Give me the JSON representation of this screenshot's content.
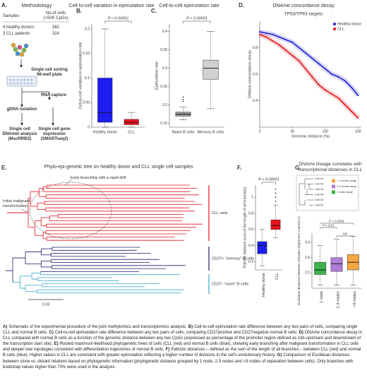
{
  "methodology": {
    "letter": "A.",
    "title": "Methodology",
    "table": {
      "header": [
        "Samples",
        "No.of cells (>50K CpGs)"
      ],
      "rows": [
        [
          "4 healthy donors",
          382
        ],
        [
          "3 CLL patients",
          324
        ]
      ]
    },
    "steps": {
      "sorting": "Single cell sorting 96-well plate",
      "rna": "RNA capture",
      "gdna": "gDNA isolation",
      "dnamet": "Single cell DNAmet analysis (MscRRBS)",
      "expr": "Single cell gene expression (SMARTseq2)"
    }
  },
  "chart_data": [
    {
      "type": "box",
      "letter": "B.",
      "title": "Cell-to-cell variation in epimutation rate",
      "pvalue": "P < 0.00001",
      "ylabel": "Cell-to-cell variation in epimutation rate",
      "categories": [
        "Healthy donor",
        "CLL"
      ],
      "colors": [
        "#1c1cf0",
        "#e8141c"
      ],
      "boxes": [
        {
          "min": 0.0,
          "q1": 0.01,
          "median": 0.03,
          "q3": 0.1,
          "max": 0.2,
          "outliers": []
        },
        {
          "min": 0.0,
          "q1": 0.005,
          "median": 0.01,
          "q3": 0.016,
          "max": 0.03,
          "outliers": []
        }
      ],
      "ylim": [
        0,
        0.21
      ],
      "yticks": [
        0,
        0.05,
        0.1,
        0.15,
        0.2
      ]
    },
    {
      "type": "box",
      "letter": "C.",
      "title": "Cell-to-cell epimutation rate",
      "pvalue": "P < 0.00001",
      "ylabel": "Epimutation rate",
      "categories": [
        "Naive B cells",
        "Memory B cells"
      ],
      "colors": [
        "#9a9a9a",
        "#d0d0d0"
      ],
      "boxes": [
        {
          "min": 0.16,
          "q1": 0.17,
          "median": 0.175,
          "q3": 0.181,
          "max": 0.195,
          "outliers": [
            0.21,
            0.215,
            0.222
          ]
        },
        {
          "min": 0.19,
          "q1": 0.27,
          "median": 0.3,
          "q3": 0.322,
          "max": 0.4,
          "outliers": []
        }
      ],
      "ylim": [
        0.14,
        0.42
      ],
      "yticks": [
        0.15,
        0.2,
        0.25,
        0.3,
        0.35,
        0.4
      ]
    },
    {
      "type": "line",
      "letter": "D.",
      "title": "DNAme concordance decay",
      "subtitle": "TP53/TP63 targets",
      "xlabel": "Genomic distance (%)",
      "ylabel": "DNAme concordance decay",
      "x": [
        0,
        10,
        20,
        30,
        40,
        50,
        60,
        70,
        80,
        90,
        100,
        110,
        120,
        130,
        140,
        150
      ],
      "series": [
        {
          "name": "Healthy donor",
          "color": "#1f1fd6",
          "values": [
            0.92,
            0.91,
            0.9,
            0.88,
            0.86,
            0.84,
            0.8,
            0.76,
            0.72,
            0.68,
            0.64,
            0.6,
            0.58,
            0.55,
            0.5,
            0.44
          ]
        },
        {
          "name": "CLL",
          "color": "#e3141c",
          "values": [
            0.9,
            0.88,
            0.85,
            0.82,
            0.78,
            0.74,
            0.7,
            0.64,
            0.58,
            0.52,
            0.48,
            0.45,
            0.42,
            0.37,
            0.32,
            0.27
          ]
        }
      ],
      "xlim": [
        0,
        155
      ],
      "xticks": [
        0,
        50,
        100,
        150
      ],
      "ylim": [
        0.2,
        1.0
      ],
      "yticks": [
        0.4,
        0.6,
        0.8
      ],
      "legend": "top-right"
    },
    {
      "type": "box",
      "letter": "F.",
      "pvalue": "P < 0.00001",
      "ylabel": "Patristic distance (sum of the length of all branches)",
      "categories": [
        "Healthy donor",
        "CLL"
      ],
      "colors": [
        "#1c1cf0",
        "#e8141c"
      ],
      "boxes": [
        {
          "min": 0.15,
          "q1": 0.3,
          "median": 0.4,
          "q3": 0.45,
          "max": 0.6,
          "outliers": []
        },
        {
          "min": 0.5,
          "q1": 0.6,
          "median": 0.65,
          "q3": 0.72,
          "max": 0.9,
          "outliers": [
            0.95,
            1.0,
            1.05,
            1.1
          ]
        }
      ],
      "ylim": [
        0.1,
        1.15
      ],
      "yticks": [
        0.2,
        0.4,
        0.6,
        0.8,
        1
      ]
    },
    {
      "type": "box",
      "letter": "G.",
      "title": "DNAme lineage correlates with transcriptional distances in CLL",
      "pvalues": [
        "P < 0.0001",
        "P < 0.01",
        "NS"
      ],
      "ylabel": "Euclidean distances between cell pairs (log2(norm counts)+1)",
      "categories": [
        "1 node",
        "2-3 nodes",
        ">3 nodes"
      ],
      "colors": [
        "#3cb44b",
        "#b07cd8",
        "#f4a742"
      ],
      "boxes": [
        {
          "min": 1.6,
          "q1": 1.95,
          "median": 2.1,
          "q3": 2.35,
          "max": 2.9,
          "outliers": []
        },
        {
          "min": 1.6,
          "q1": 2.05,
          "median": 2.3,
          "q3": 2.5,
          "max": 3.1,
          "outliers": []
        },
        {
          "min": 1.6,
          "q1": 2.1,
          "median": 2.35,
          "q3": 2.6,
          "max": 3.2,
          "outliers": []
        }
      ],
      "ylim": [
        1.5,
        3.3
      ],
      "yticks": [
        {
          "value": 2,
          "label": "2.0"
        },
        2.5,
        {
          "value": 3,
          "label": "3.0"
        }
      ],
      "cells": [
        "Cell #1",
        "Cell #2",
        "Cell #3",
        "Cell #4",
        "Cell #5",
        "Cell #n"
      ],
      "legend_items": [
        {
          "name": "> 3 nodes away",
          "color": "#f4a742"
        },
        {
          "name": "2-3 nodes away",
          "color": "#b07cd8"
        },
        {
          "name": "1 node away",
          "color": "#3cb44b"
        }
      ]
    }
  ],
  "tree": {
    "letter": "E.",
    "title": "Phylo-epi-genetic tree on healthy donor and CLL single cell samples",
    "annotations": [
      "Early branching with a rapid drift",
      "Initial malignant transformation"
    ],
    "groups": [
      {
        "name": "CLL cells",
        "color": "#e3141c"
      },
      {
        "name": "CD27+ “memory” B cells",
        "color": "#1b1b6b"
      },
      {
        "name": "CD27- “naive” B cells",
        "color": "#3aa6cc"
      }
    ],
    "scale": 0.03
  },
  "caption": [
    {
      "label": "A)",
      "text": "Schematic of the experimental procedure of the joint methylomics and transcriptomics analysis."
    },
    {
      "label": "B)",
      "text": "Cell-to-cell epimutation rate difference between any two pairs of cells, comparing single CLL and normal B cells."
    },
    {
      "label": "C)",
      "text": "Cell-to-cell epimutation rate difference between any two pairs of cells, comparing CD27positive and CD27negative normal B cells."
    },
    {
      "label": "D)",
      "text": "DNAme concordance decay in CLL compared with normal B cells as a function of the genomic distance between any two CpGs (expressed as percentage of the promoter region defined as 1kb upstream and downstream of the transcription start site)."
    },
    {
      "label": "E)",
      "text": "Rooted maximum-likelihood phylogenetic trees of cells (CLL (red) and normal B cells (blue), showing early branching after malignant transformation in CLL cells and deeper tree topologies consistent with differentiation trajectories of normal B cells."
    },
    {
      "label": "F)",
      "text": "Patristic distances – defined as the sum of the length of all branches – between CLL (red) and normal B cells (blue). Higher values in CLL are consistent with greater epimutation reflecting a higher number of divisions in the cell's evolutionary history."
    },
    {
      "label": "G)",
      "text": "Comparison of Euclidean distances between close vs. distant relatives based on phylogenetic information (phylogenetic distance grouped by 1 node, 2-3 nodes and >3 nodes of separation between cells). Only branches with bootstrap values higher than 70% were used in the analysis."
    }
  ]
}
